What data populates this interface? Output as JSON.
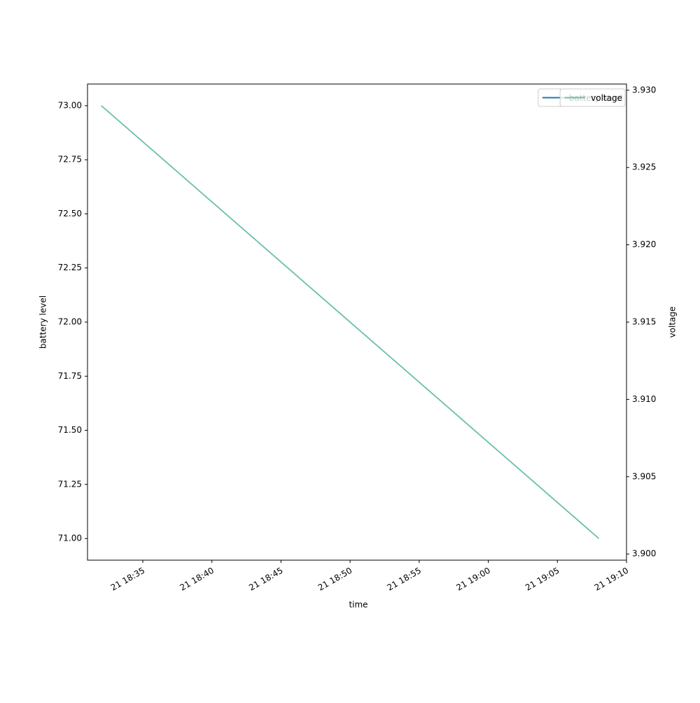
{
  "chart_data": {
    "type": "line",
    "xlabel": "time",
    "ylabel": "battery level",
    "y2label": "voltage",
    "x": [
      "21 18:32",
      "21 19:08"
    ],
    "xlim": [
      "21 18:31",
      "21 19:10"
    ],
    "xticks": [
      "21 18:35",
      "21 18:40",
      "21 18:45",
      "21 18:50",
      "21 18:55",
      "21 19:00",
      "21 19:05",
      "21 19:10"
    ],
    "ylim": [
      70.9,
      73.1
    ],
    "yticks": [
      {
        "value": 71,
        "label": "71.00"
      },
      {
        "value": 71.25,
        "label": "71.25"
      },
      {
        "value": 71.5,
        "label": "71.50"
      },
      {
        "value": 71.75,
        "label": "71.75"
      },
      {
        "value": 72,
        "label": "72.00"
      },
      {
        "value": 72.25,
        "label": "72.25"
      },
      {
        "value": 72.5,
        "label": "72.50"
      },
      {
        "value": 72.75,
        "label": "72.75"
      },
      {
        "value": 73,
        "label": "73.00"
      }
    ],
    "y2lim": [
      3.8996,
      3.9304
    ],
    "y2ticks": [
      {
        "value": 3.9,
        "label": "3.900"
      },
      {
        "value": 3.905,
        "label": "3.905"
      },
      {
        "value": 3.91,
        "label": "3.910"
      },
      {
        "value": 3.915,
        "label": "3.915"
      },
      {
        "value": 3.92,
        "label": "3.920"
      },
      {
        "value": 3.925,
        "label": "3.925"
      },
      {
        "value": 3.93,
        "label": "3.930"
      }
    ],
    "legend": "upper right",
    "series": [
      {
        "name": "battery level",
        "color": "#1f77b4",
        "values": [
          73,
          71
        ]
      },
      {
        "name": "voltage",
        "color": "#66c2a5",
        "axis": "y2",
        "values": [
          3.929,
          3.901
        ]
      }
    ]
  }
}
